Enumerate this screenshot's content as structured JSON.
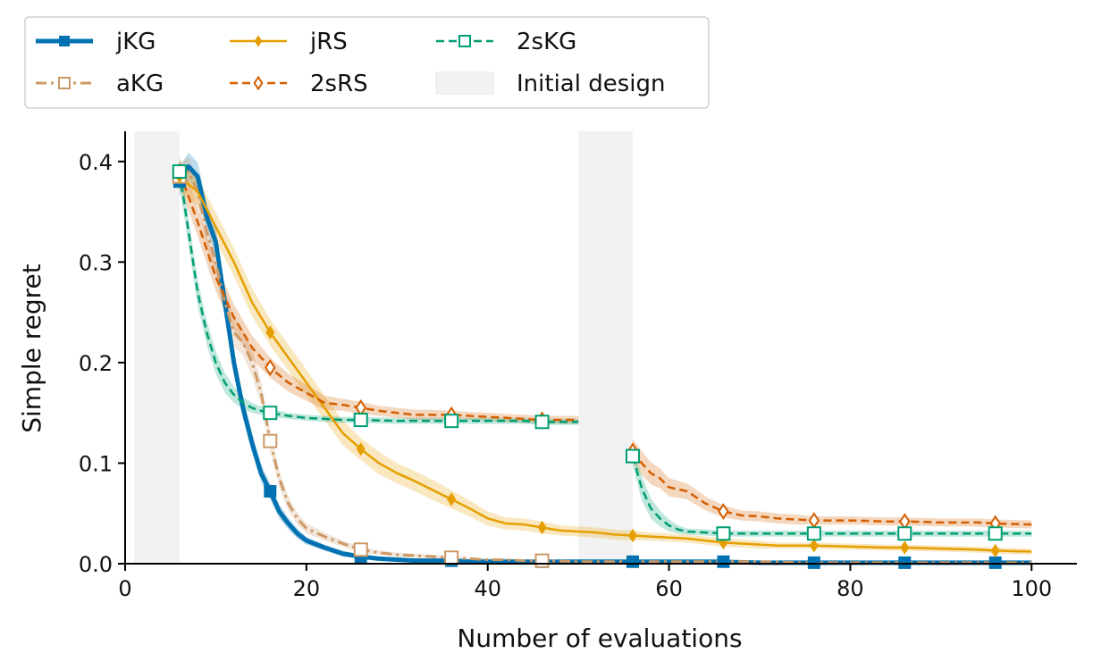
{
  "chart_data": {
    "type": "line",
    "xlabel": "Number of evaluations",
    "ylabel": "Simple regret",
    "xlim": [
      0,
      105
    ],
    "ylim": [
      0,
      0.43
    ],
    "xticks": [
      0,
      20,
      40,
      60,
      80,
      100
    ],
    "yticks": [
      0.0,
      0.1,
      0.2,
      0.3,
      0.4
    ],
    "xtick_labels": [
      "0",
      "20",
      "40",
      "60",
      "80",
      "100"
    ],
    "ytick_labels": [
      "0.0",
      "0.1",
      "0.2",
      "0.3",
      "0.4"
    ],
    "legend_position": "top-left outside",
    "initial_design": {
      "label": "Initial design",
      "color": "#f2f2f2",
      "intervals": [
        [
          1,
          6
        ],
        [
          50,
          56
        ]
      ]
    },
    "series": [
      {
        "name": "jKG",
        "color": "#0072b2",
        "style": "solid",
        "width": 5,
        "marker": "square-filled",
        "x": [
          6,
          7,
          8,
          9,
          10,
          11,
          12,
          13,
          14,
          15,
          16,
          17,
          18,
          19,
          20,
          22,
          24,
          26,
          28,
          30,
          32,
          34,
          36,
          38,
          40,
          42,
          44,
          46,
          50,
          55,
          60,
          65,
          70,
          75,
          80,
          85,
          90,
          95,
          100
        ],
        "y": [
          0.38,
          0.395,
          0.385,
          0.345,
          0.32,
          0.26,
          0.2,
          0.155,
          0.12,
          0.09,
          0.072,
          0.052,
          0.04,
          0.03,
          0.023,
          0.016,
          0.01,
          0.007,
          0.005,
          0.004,
          0.003,
          0.003,
          0.003,
          0.002,
          0.002,
          0.002,
          0.002,
          0.002,
          0.002,
          0.002,
          0.002,
          0.002,
          0.001,
          0.001,
          0.001,
          0.001,
          0.001,
          0.001,
          0.001
        ],
        "band": [
          0.014,
          0.014,
          0.014,
          0.014,
          0.014,
          0.013,
          0.012,
          0.011,
          0.01,
          0.009,
          0.008,
          0.007,
          0.006,
          0.005,
          0.004,
          0.003,
          0.003,
          0.002,
          0.002,
          0.002,
          0.001,
          0.001,
          0.001,
          0.001,
          0.001,
          0.001,
          0.001,
          0.001,
          0.001,
          0.001,
          0.001,
          0.001,
          0.001,
          0.001,
          0.001,
          0.001,
          0.001,
          0.001,
          0.001
        ],
        "marker_x": [
          6,
          16,
          26,
          36,
          46,
          56,
          66,
          76,
          86,
          96
        ],
        "marker_y": [
          0.38,
          0.072,
          0.007,
          0.003,
          0.002,
          0.002,
          0.002,
          0.001,
          0.001,
          0.001
        ]
      },
      {
        "name": "aKG",
        "color": "#cc9966",
        "style": "dashdot",
        "width": 3,
        "marker": "square-open",
        "x": [
          6,
          7,
          8,
          9,
          10,
          11,
          12,
          13,
          14,
          15,
          16,
          17,
          18,
          19,
          20,
          22,
          24,
          26,
          28,
          30,
          32,
          34,
          36,
          38,
          40,
          42,
          44,
          46,
          50,
          55,
          60,
          65,
          70,
          75,
          80,
          85,
          90,
          95,
          100
        ],
        "y": [
          0.385,
          0.39,
          0.37,
          0.33,
          0.3,
          0.26,
          0.23,
          0.22,
          0.2,
          0.17,
          0.122,
          0.085,
          0.06,
          0.045,
          0.035,
          0.027,
          0.02,
          0.014,
          0.011,
          0.009,
          0.008,
          0.007,
          0.006,
          0.005,
          0.004,
          0.004,
          0.003,
          0.003,
          0.002,
          0.002,
          0.002,
          0.002,
          0.002,
          0.001,
          0.001,
          0.001,
          0.001,
          0.001,
          0.001
        ],
        "band": [
          0.014,
          0.014,
          0.014,
          0.014,
          0.014,
          0.014,
          0.014,
          0.013,
          0.013,
          0.012,
          0.01,
          0.008,
          0.007,
          0.006,
          0.005,
          0.004,
          0.003,
          0.003,
          0.002,
          0.002,
          0.002,
          0.002,
          0.002,
          0.001,
          0.001,
          0.001,
          0.001,
          0.001,
          0.001,
          0.001,
          0.001,
          0.001,
          0.001,
          0.001,
          0.001,
          0.001,
          0.001,
          0.001,
          0.001
        ],
        "marker_x": [
          6,
          16,
          26,
          36,
          46
        ],
        "marker_y": [
          0.385,
          0.122,
          0.014,
          0.006,
          0.003
        ]
      },
      {
        "name": "jRS",
        "color": "#e69f00",
        "style": "solid",
        "width": 2.5,
        "marker": "diamond-filled",
        "x": [
          6,
          8,
          10,
          12,
          14,
          16,
          18,
          20,
          22,
          24,
          26,
          28,
          30,
          32,
          34,
          36,
          38,
          40,
          42,
          44,
          46,
          48,
          50,
          52,
          54,
          56,
          58,
          60,
          62,
          64,
          66,
          68,
          70,
          72,
          74,
          76,
          80,
          84,
          86,
          90,
          94,
          96,
          100
        ],
        "y": [
          0.385,
          0.37,
          0.335,
          0.3,
          0.26,
          0.23,
          0.205,
          0.18,
          0.155,
          0.13,
          0.114,
          0.1,
          0.09,
          0.082,
          0.073,
          0.064,
          0.055,
          0.045,
          0.04,
          0.039,
          0.036,
          0.033,
          0.032,
          0.031,
          0.029,
          0.028,
          0.027,
          0.026,
          0.025,
          0.023,
          0.021,
          0.02,
          0.019,
          0.018,
          0.018,
          0.018,
          0.017,
          0.016,
          0.016,
          0.015,
          0.014,
          0.013,
          0.012
        ],
        "band": [
          0.014,
          0.014,
          0.014,
          0.014,
          0.014,
          0.013,
          0.013,
          0.013,
          0.012,
          0.012,
          0.011,
          0.011,
          0.01,
          0.01,
          0.01,
          0.009,
          0.008,
          0.007,
          0.006,
          0.006,
          0.006,
          0.005,
          0.005,
          0.005,
          0.005,
          0.005,
          0.004,
          0.004,
          0.004,
          0.004,
          0.004,
          0.004,
          0.004,
          0.003,
          0.003,
          0.003,
          0.003,
          0.003,
          0.003,
          0.003,
          0.003,
          0.003,
          0.003
        ],
        "marker_x": [
          6,
          16,
          26,
          36,
          46,
          56,
          66,
          76,
          86,
          96
        ],
        "marker_y": [
          0.385,
          0.23,
          0.114,
          0.064,
          0.036,
          0.028,
          0.021,
          0.018,
          0.016,
          0.013
        ]
      },
      {
        "name": "2sRS",
        "color": "#d55e00",
        "style": "dashed",
        "width": 2.5,
        "marker": "diamond-open",
        "x": [
          6,
          8,
          10,
          12,
          14,
          16,
          18,
          20,
          22,
          24,
          26,
          28,
          30,
          32,
          34,
          36,
          38,
          40,
          42,
          44,
          46,
          48,
          50,
          56,
          57,
          58,
          59,
          60,
          62,
          64,
          66,
          68,
          70,
          72,
          74,
          76,
          80,
          84,
          86,
          90,
          94,
          96,
          100
        ],
        "y": [
          0.39,
          0.34,
          0.285,
          0.245,
          0.215,
          0.195,
          0.18,
          0.17,
          0.16,
          0.158,
          0.155,
          0.152,
          0.15,
          0.148,
          0.148,
          0.148,
          0.147,
          0.146,
          0.145,
          0.144,
          0.143,
          0.143,
          0.143,
          0.112,
          0.1,
          0.09,
          0.085,
          0.076,
          0.072,
          0.06,
          0.052,
          0.048,
          0.047,
          0.045,
          0.044,
          0.043,
          0.043,
          0.042,
          0.042,
          0.041,
          0.041,
          0.04,
          0.039
        ],
        "band": [
          0.014,
          0.014,
          0.014,
          0.013,
          0.012,
          0.01,
          0.009,
          0.008,
          0.007,
          0.006,
          0.006,
          0.005,
          0.005,
          0.005,
          0.005,
          0.004,
          0.004,
          0.004,
          0.004,
          0.004,
          0.004,
          0.004,
          0.004,
          0.012,
          0.012,
          0.011,
          0.01,
          0.009,
          0.008,
          0.007,
          0.006,
          0.005,
          0.005,
          0.005,
          0.005,
          0.004,
          0.004,
          0.004,
          0.004,
          0.004,
          0.004,
          0.004,
          0.004
        ],
        "break_after_x": 50,
        "marker_x": [
          6,
          16,
          26,
          36,
          46,
          56,
          66,
          76,
          86,
          96
        ],
        "marker_y": [
          0.39,
          0.195,
          0.155,
          0.148,
          0.143,
          0.112,
          0.052,
          0.043,
          0.042,
          0.04
        ]
      },
      {
        "name": "2sKG",
        "color": "#009e73",
        "style": "dashed",
        "width": 2.5,
        "marker": "square-open",
        "x": [
          6,
          7,
          8,
          9,
          10,
          11,
          12,
          13,
          14,
          15,
          16,
          18,
          20,
          22,
          24,
          26,
          30,
          34,
          36,
          40,
          44,
          46,
          50,
          56,
          57,
          58,
          59,
          60,
          61,
          62,
          64,
          66,
          70,
          76,
          80,
          86,
          90,
          96,
          100
        ],
        "y": [
          0.39,
          0.33,
          0.27,
          0.23,
          0.2,
          0.18,
          0.168,
          0.16,
          0.155,
          0.152,
          0.15,
          0.147,
          0.145,
          0.144,
          0.143,
          0.143,
          0.142,
          0.142,
          0.142,
          0.142,
          0.142,
          0.141,
          0.141,
          0.107,
          0.075,
          0.055,
          0.045,
          0.038,
          0.034,
          0.032,
          0.031,
          0.03,
          0.03,
          0.03,
          0.03,
          0.03,
          0.03,
          0.03,
          0.03
        ],
        "band": [
          0.014,
          0.014,
          0.013,
          0.012,
          0.011,
          0.01,
          0.008,
          0.006,
          0.005,
          0.004,
          0.004,
          0.003,
          0.003,
          0.003,
          0.003,
          0.003,
          0.003,
          0.003,
          0.003,
          0.003,
          0.003,
          0.003,
          0.003,
          0.01,
          0.012,
          0.01,
          0.008,
          0.006,
          0.004,
          0.003,
          0.003,
          0.003,
          0.003,
          0.003,
          0.003,
          0.003,
          0.003,
          0.003,
          0.003
        ],
        "break_after_x": 50,
        "marker_x": [
          6,
          16,
          26,
          36,
          46,
          56,
          66,
          76,
          86,
          96
        ],
        "marker_y": [
          0.39,
          0.15,
          0.143,
          0.142,
          0.141,
          0.107,
          0.03,
          0.03,
          0.03,
          0.03
        ]
      }
    ]
  }
}
